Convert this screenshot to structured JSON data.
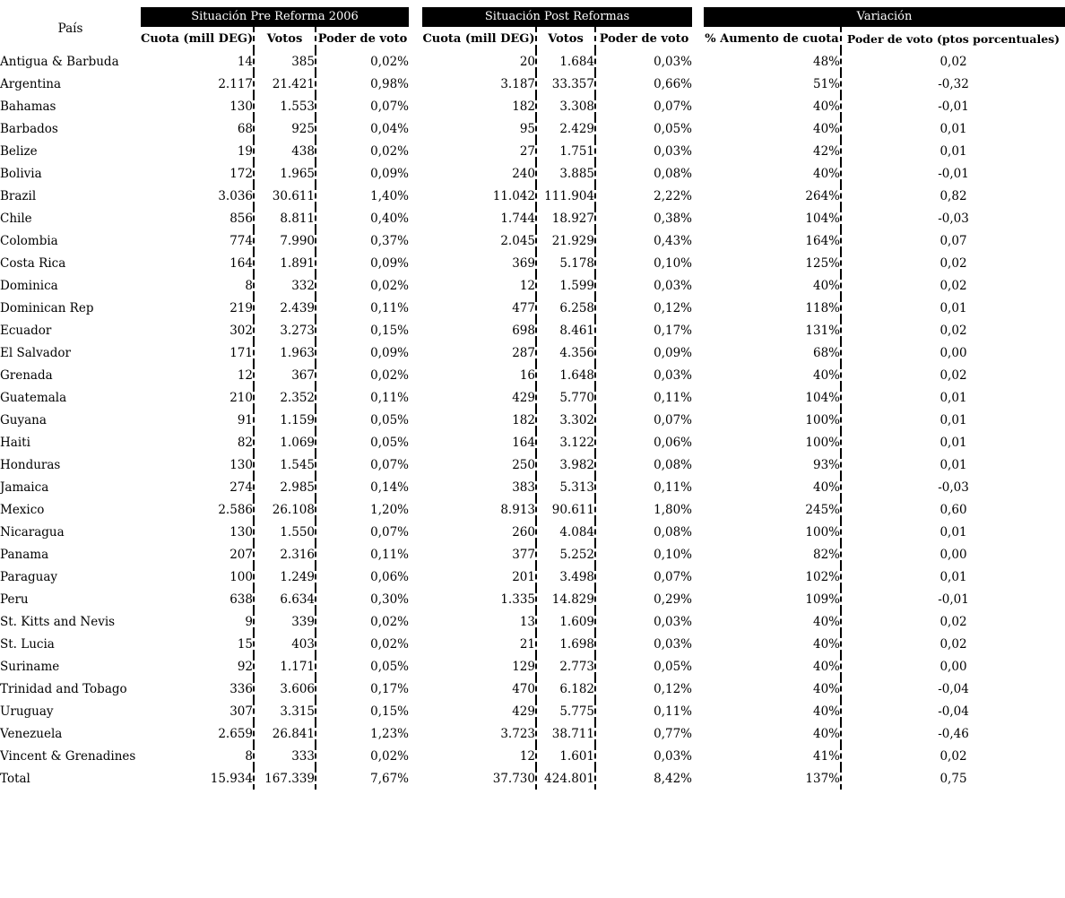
{
  "table": {
    "pais_header": "País",
    "groups": [
      {
        "label": "Situación Pre Reforma 2006",
        "columns": [
          "Cuota (mill DEG)",
          "Votos",
          "Poder de voto"
        ]
      },
      {
        "label": "Situación Post Reformas",
        "columns": [
          "Cuota (mill DEG)",
          "Votos",
          "Poder de voto"
        ]
      },
      {
        "label": "Variación",
        "columns": [
          "% Aumento de cuota",
          "Poder de voto (ptos porcentuales)"
        ]
      }
    ],
    "rows": [
      [
        "Antigua & Barbuda",
        "14",
        "385",
        "0,02%",
        "20",
        "1.684",
        "0,03%",
        "48%",
        "0,02"
      ],
      [
        "Argentina",
        "2.117",
        "21.421",
        "0,98%",
        "3.187",
        "33.357",
        "0,66%",
        "51%",
        "-0,32"
      ],
      [
        "Bahamas",
        "130",
        "1.553",
        "0,07%",
        "182",
        "3.308",
        "0,07%",
        "40%",
        "-0,01"
      ],
      [
        "Barbados",
        "68",
        "925",
        "0,04%",
        "95",
        "2.429",
        "0,05%",
        "40%",
        "0,01"
      ],
      [
        "Belize",
        "19",
        "438",
        "0,02%",
        "27",
        "1.751",
        "0,03%",
        "42%",
        "0,01"
      ],
      [
        "Bolivia",
        "172",
        "1.965",
        "0,09%",
        "240",
        "3.885",
        "0,08%",
        "40%",
        "-0,01"
      ],
      [
        "Brazil",
        "3.036",
        "30.611",
        "1,40%",
        "11.042",
        "111.904",
        "2,22%",
        "264%",
        "0,82"
      ],
      [
        "Chile",
        "856",
        "8.811",
        "0,40%",
        "1.744",
        "18.927",
        "0,38%",
        "104%",
        "-0,03"
      ],
      [
        "Colombia",
        "774",
        "7.990",
        "0,37%",
        "2.045",
        "21.929",
        "0,43%",
        "164%",
        "0,07"
      ],
      [
        "Costa Rica",
        "164",
        "1.891",
        "0,09%",
        "369",
        "5.178",
        "0,10%",
        "125%",
        "0,02"
      ],
      [
        "Dominica",
        "8",
        "332",
        "0,02%",
        "12",
        "1.599",
        "0,03%",
        "40%",
        "0,02"
      ],
      [
        "Dominican Rep",
        "219",
        "2.439",
        "0,11%",
        "477",
        "6.258",
        "0,12%",
        "118%",
        "0,01"
      ],
      [
        "Ecuador",
        "302",
        "3.273",
        "0,15%",
        "698",
        "8.461",
        "0,17%",
        "131%",
        "0,02"
      ],
      [
        "El Salvador",
        "171",
        "1.963",
        "0,09%",
        "287",
        "4.356",
        "0,09%",
        "68%",
        "0,00"
      ],
      [
        "Grenada",
        "12",
        "367",
        "0,02%",
        "16",
        "1.648",
        "0,03%",
        "40%",
        "0,02"
      ],
      [
        "Guatemala",
        "210",
        "2.352",
        "0,11%",
        "429",
        "5.770",
        "0,11%",
        "104%",
        "0,01"
      ],
      [
        "Guyana",
        "91",
        "1.159",
        "0,05%",
        "182",
        "3.302",
        "0,07%",
        "100%",
        "0,01"
      ],
      [
        "Haiti",
        "82",
        "1.069",
        "0,05%",
        "164",
        "3.122",
        "0,06%",
        "100%",
        "0,01"
      ],
      [
        "Honduras",
        "130",
        "1.545",
        "0,07%",
        "250",
        "3.982",
        "0,08%",
        "93%",
        "0,01"
      ],
      [
        "Jamaica",
        "274",
        "2.985",
        "0,14%",
        "383",
        "5.313",
        "0,11%",
        "40%",
        "-0,03"
      ],
      [
        "Mexico",
        "2.586",
        "26.108",
        "1,20%",
        "8.913",
        "90.611",
        "1,80%",
        "245%",
        "0,60"
      ],
      [
        "Nicaragua",
        "130",
        "1.550",
        "0,07%",
        "260",
        "4.084",
        "0,08%",
        "100%",
        "0,01"
      ],
      [
        "Panama",
        "207",
        "2.316",
        "0,11%",
        "377",
        "5.252",
        "0,10%",
        "82%",
        "0,00"
      ],
      [
        "Paraguay",
        "100",
        "1.249",
        "0,06%",
        "201",
        "3.498",
        "0,07%",
        "102%",
        "0,01"
      ],
      [
        "Peru",
        "638",
        "6.634",
        "0,30%",
        "1.335",
        "14.829",
        "0,29%",
        "109%",
        "-0,01"
      ],
      [
        "St. Kitts and Nevis",
        "9",
        "339",
        "0,02%",
        "13",
        "1.609",
        "0,03%",
        "40%",
        "0,02"
      ],
      [
        "St. Lucia",
        "15",
        "403",
        "0,02%",
        "21",
        "1.698",
        "0,03%",
        "40%",
        "0,02"
      ],
      [
        "Suriname",
        "92",
        "1.171",
        "0,05%",
        "129",
        "2.773",
        "0,05%",
        "40%",
        "0,00"
      ],
      [
        "Trinidad and Tobago",
        "336",
        "3.606",
        "0,17%",
        "470",
        "6.182",
        "0,12%",
        "40%",
        "-0,04"
      ],
      [
        "Uruguay",
        "307",
        "3.315",
        "0,15%",
        "429",
        "5.775",
        "0,11%",
        "40%",
        "-0,04"
      ],
      [
        "Venezuela",
        "2.659",
        "26.841",
        "1,23%",
        "3.723",
        "38.711",
        "0,77%",
        "40%",
        "-0,46"
      ],
      [
        "Vincent & Grenadines",
        "8",
        "333",
        "0,02%",
        "12",
        "1.601",
        "0,03%",
        "41%",
        "0,02"
      ],
      [
        "Total",
        "15.934",
        "167.339",
        "7,67%",
        "37.730",
        "424.801",
        "8,42%",
        "137%",
        "0,75"
      ]
    ]
  },
  "colors": {
    "header_bg": "#000000",
    "header_text": "#ffffff",
    "body_text": "#000000",
    "background": "#ffffff"
  }
}
